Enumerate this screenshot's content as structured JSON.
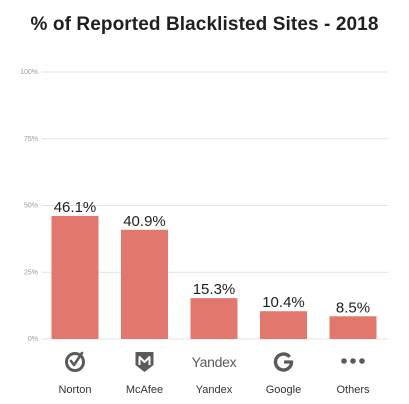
{
  "chart_data": {
    "type": "bar",
    "title": "% of Reported Blacklisted Sites - 2018",
    "xlabel": "",
    "ylabel": "",
    "categories": [
      "Norton",
      "McAfee",
      "Yandex",
      "Google",
      "Others"
    ],
    "values": [
      46.1,
      40.9,
      15.3,
      10.4,
      8.5
    ],
    "value_labels": [
      "46.1%",
      "40.9%",
      "15.3%",
      "10.4%",
      "8.5%"
    ],
    "yticks": [
      {
        "value": 0,
        "label": "0%"
      },
      {
        "value": 25,
        "label": "25%"
      },
      {
        "value": 50,
        "label": "50%"
      },
      {
        "value": 75,
        "label": "75%"
      },
      {
        "value": 100,
        "label": "100%"
      }
    ],
    "ylim": [
      0,
      100
    ],
    "grid": true,
    "legend": "none",
    "category_icons": [
      "norton-logo",
      "mcafee-logo",
      "yandex-logo",
      "google-logo",
      "more-dots"
    ],
    "yandex_logo_text": "Yandex",
    "colors": {
      "bar": "#e1776d",
      "grid": "#e3e3e3",
      "tick": "#9a9a9a",
      "logo": "#5a5a5a"
    }
  }
}
